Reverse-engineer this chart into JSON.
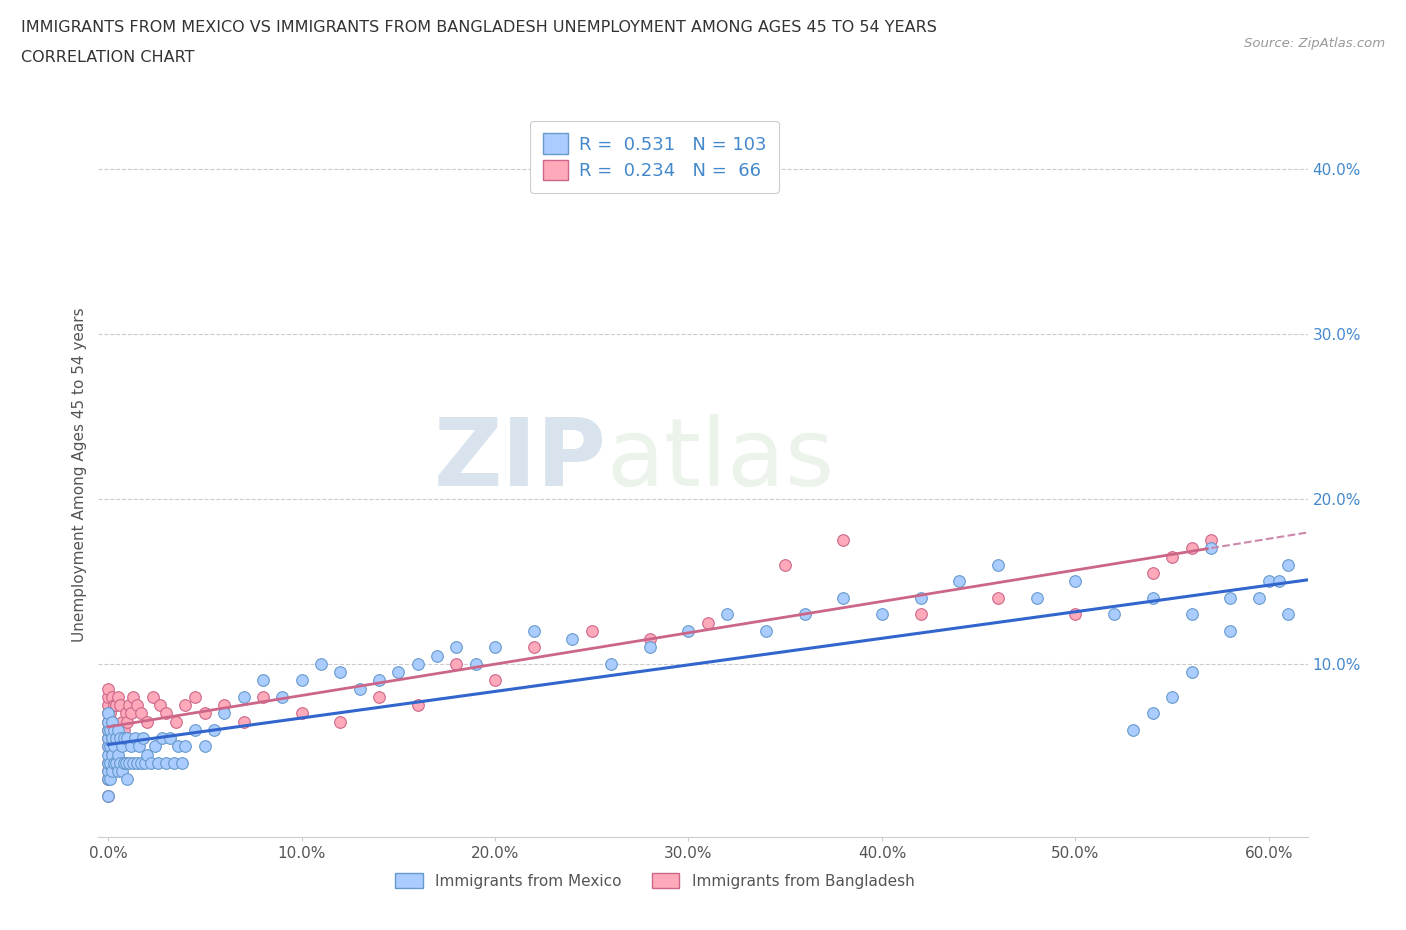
{
  "title_line1": "IMMIGRANTS FROM MEXICO VS IMMIGRANTS FROM BANGLADESH UNEMPLOYMENT AMONG AGES 45 TO 54 YEARS",
  "title_line2": "CORRELATION CHART",
  "source_text": "Source: ZipAtlas.com",
  "ylabel": "Unemployment Among Ages 45 to 54 years",
  "legend_label1": "Immigrants from Mexico",
  "legend_label2": "Immigrants from Bangladesh",
  "R1": 0.531,
  "N1": 103,
  "R2": 0.234,
  "N2": 66,
  "color_mexico_face": "#aaccff",
  "color_mexico_edge": "#6699cc",
  "color_bang_face": "#ffaabb",
  "color_bang_edge": "#cc6688",
  "color_mexico_line": "#3366cc",
  "color_bang_line": "#cc6688",
  "color_bang_dashed": "#cc88aa",
  "xlim": [
    -0.005,
    0.62
  ],
  "ylim": [
    -0.005,
    0.435
  ],
  "xticks": [
    0.0,
    0.1,
    0.2,
    0.3,
    0.4,
    0.5,
    0.6
  ],
  "yticks_right": [
    0.1,
    0.2,
    0.3,
    0.4
  ],
  "watermark_zip": "ZIP",
  "watermark_atlas": "atlas",
  "background_color": "#ffffff",
  "mexico_x": [
    0.0,
    0.0,
    0.0,
    0.0,
    0.0,
    0.0,
    0.0,
    0.0,
    0.0,
    0.0,
    0.001,
    0.001,
    0.001,
    0.001,
    0.002,
    0.002,
    0.002,
    0.002,
    0.003,
    0.003,
    0.003,
    0.004,
    0.004,
    0.005,
    0.005,
    0.005,
    0.006,
    0.006,
    0.007,
    0.007,
    0.008,
    0.008,
    0.009,
    0.01,
    0.01,
    0.011,
    0.012,
    0.013,
    0.014,
    0.015,
    0.016,
    0.017,
    0.018,
    0.019,
    0.02,
    0.022,
    0.024,
    0.026,
    0.028,
    0.03,
    0.032,
    0.034,
    0.036,
    0.038,
    0.04,
    0.045,
    0.05,
    0.055,
    0.06,
    0.07,
    0.08,
    0.09,
    0.1,
    0.11,
    0.12,
    0.13,
    0.14,
    0.15,
    0.16,
    0.17,
    0.18,
    0.19,
    0.2,
    0.22,
    0.24,
    0.26,
    0.28,
    0.3,
    0.32,
    0.34,
    0.36,
    0.38,
    0.4,
    0.42,
    0.44,
    0.46,
    0.48,
    0.5,
    0.52,
    0.54,
    0.56,
    0.58,
    0.6,
    0.595,
    0.605,
    0.61,
    0.61,
    0.58,
    0.57,
    0.56,
    0.55,
    0.54,
    0.53
  ],
  "mexico_y": [
    0.02,
    0.03,
    0.035,
    0.04,
    0.045,
    0.05,
    0.055,
    0.06,
    0.065,
    0.07,
    0.03,
    0.04,
    0.05,
    0.06,
    0.035,
    0.045,
    0.055,
    0.065,
    0.04,
    0.05,
    0.06,
    0.04,
    0.055,
    0.035,
    0.045,
    0.06,
    0.04,
    0.055,
    0.035,
    0.05,
    0.04,
    0.055,
    0.04,
    0.03,
    0.055,
    0.04,
    0.05,
    0.04,
    0.055,
    0.04,
    0.05,
    0.04,
    0.055,
    0.04,
    0.045,
    0.04,
    0.05,
    0.04,
    0.055,
    0.04,
    0.055,
    0.04,
    0.05,
    0.04,
    0.05,
    0.06,
    0.05,
    0.06,
    0.07,
    0.08,
    0.09,
    0.08,
    0.09,
    0.1,
    0.095,
    0.085,
    0.09,
    0.095,
    0.1,
    0.105,
    0.11,
    0.1,
    0.11,
    0.12,
    0.115,
    0.1,
    0.11,
    0.12,
    0.13,
    0.12,
    0.13,
    0.14,
    0.13,
    0.14,
    0.15,
    0.16,
    0.14,
    0.15,
    0.13,
    0.14,
    0.13,
    0.14,
    0.15,
    0.14,
    0.15,
    0.16,
    0.13,
    0.12,
    0.17,
    0.095,
    0.08,
    0.07,
    0.06
  ],
  "bangladesh_x": [
    0.0,
    0.0,
    0.0,
    0.0,
    0.0,
    0.0,
    0.0,
    0.0,
    0.0,
    0.0,
    0.0,
    0.0,
    0.001,
    0.001,
    0.001,
    0.001,
    0.002,
    0.002,
    0.002,
    0.003,
    0.003,
    0.004,
    0.004,
    0.005,
    0.005,
    0.006,
    0.006,
    0.007,
    0.008,
    0.009,
    0.01,
    0.011,
    0.012,
    0.013,
    0.015,
    0.017,
    0.02,
    0.023,
    0.027,
    0.03,
    0.035,
    0.04,
    0.045,
    0.05,
    0.06,
    0.07,
    0.08,
    0.1,
    0.12,
    0.14,
    0.16,
    0.18,
    0.2,
    0.22,
    0.25,
    0.28,
    0.31,
    0.35,
    0.38,
    0.42,
    0.46,
    0.5,
    0.54,
    0.55,
    0.56,
    0.57
  ],
  "bangladesh_y": [
    0.02,
    0.03,
    0.035,
    0.04,
    0.05,
    0.055,
    0.06,
    0.065,
    0.07,
    0.075,
    0.08,
    0.085,
    0.04,
    0.05,
    0.06,
    0.07,
    0.05,
    0.065,
    0.08,
    0.06,
    0.075,
    0.055,
    0.075,
    0.06,
    0.08,
    0.055,
    0.075,
    0.065,
    0.06,
    0.07,
    0.065,
    0.075,
    0.07,
    0.08,
    0.075,
    0.07,
    0.065,
    0.08,
    0.075,
    0.07,
    0.065,
    0.075,
    0.08,
    0.07,
    0.075,
    0.065,
    0.08,
    0.07,
    0.065,
    0.08,
    0.075,
    0.1,
    0.09,
    0.11,
    0.12,
    0.115,
    0.125,
    0.16,
    0.175,
    0.13,
    0.14,
    0.13,
    0.155,
    0.165,
    0.17,
    0.175
  ]
}
